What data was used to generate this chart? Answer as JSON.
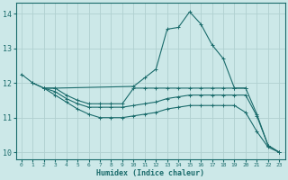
{
  "bg_color": "#cce8e8",
  "grid_color": "#b0d0d0",
  "line_color": "#1a6b6b",
  "xlabel": "Humidex (Indice chaleur)",
  "xlim": [
    -0.5,
    23.5
  ],
  "ylim": [
    9.8,
    14.3
  ],
  "yticks": [
    10,
    11,
    12,
    13,
    14
  ],
  "xticks": [
    0,
    1,
    2,
    3,
    4,
    5,
    6,
    7,
    8,
    9,
    10,
    11,
    12,
    13,
    14,
    15,
    16,
    17,
    18,
    19,
    20,
    21,
    22,
    23
  ],
  "series": [
    {
      "x": [
        0,
        1,
        2,
        3,
        10,
        11,
        12,
        13,
        14,
        15,
        16,
        17,
        18,
        19,
        20
      ],
      "y": [
        12.25,
        12.0,
        11.85,
        11.85,
        11.9,
        12.15,
        12.4,
        13.55,
        13.6,
        14.05,
        13.7,
        13.1,
        12.7,
        11.85,
        11.85
      ]
    },
    {
      "x": [
        1,
        2,
        3,
        4,
        5,
        6,
        7,
        8,
        9,
        10,
        11,
        12,
        13,
        14,
        15,
        16,
        17,
        18,
        19,
        20,
        21,
        22,
        23
      ],
      "y": [
        12.0,
        11.85,
        11.85,
        11.65,
        11.5,
        11.4,
        11.4,
        11.4,
        11.4,
        11.85,
        11.85,
        11.85,
        11.85,
        11.85,
        11.85,
        11.85,
        11.85,
        11.85,
        11.85,
        11.85,
        11.1,
        10.2,
        10.0
      ]
    },
    {
      "x": [
        2,
        3,
        4,
        5,
        6,
        7,
        8,
        9,
        10,
        11,
        12,
        13,
        14,
        15,
        16,
        17,
        18,
        19,
        20,
        21,
        22,
        23
      ],
      "y": [
        11.85,
        11.75,
        11.55,
        11.4,
        11.3,
        11.3,
        11.3,
        11.3,
        11.35,
        11.4,
        11.45,
        11.55,
        11.6,
        11.65,
        11.65,
        11.65,
        11.65,
        11.65,
        11.65,
        11.05,
        10.2,
        10.0
      ]
    },
    {
      "x": [
        2,
        3,
        4,
        5,
        6,
        7,
        8,
        9,
        10,
        11,
        12,
        13,
        14,
        15,
        16,
        17,
        18,
        19,
        20,
        21,
        22,
        23
      ],
      "y": [
        11.85,
        11.65,
        11.45,
        11.25,
        11.1,
        11.0,
        11.0,
        11.0,
        11.05,
        11.1,
        11.15,
        11.25,
        11.3,
        11.35,
        11.35,
        11.35,
        11.35,
        11.35,
        11.15,
        10.6,
        10.15,
        10.0
      ]
    }
  ]
}
